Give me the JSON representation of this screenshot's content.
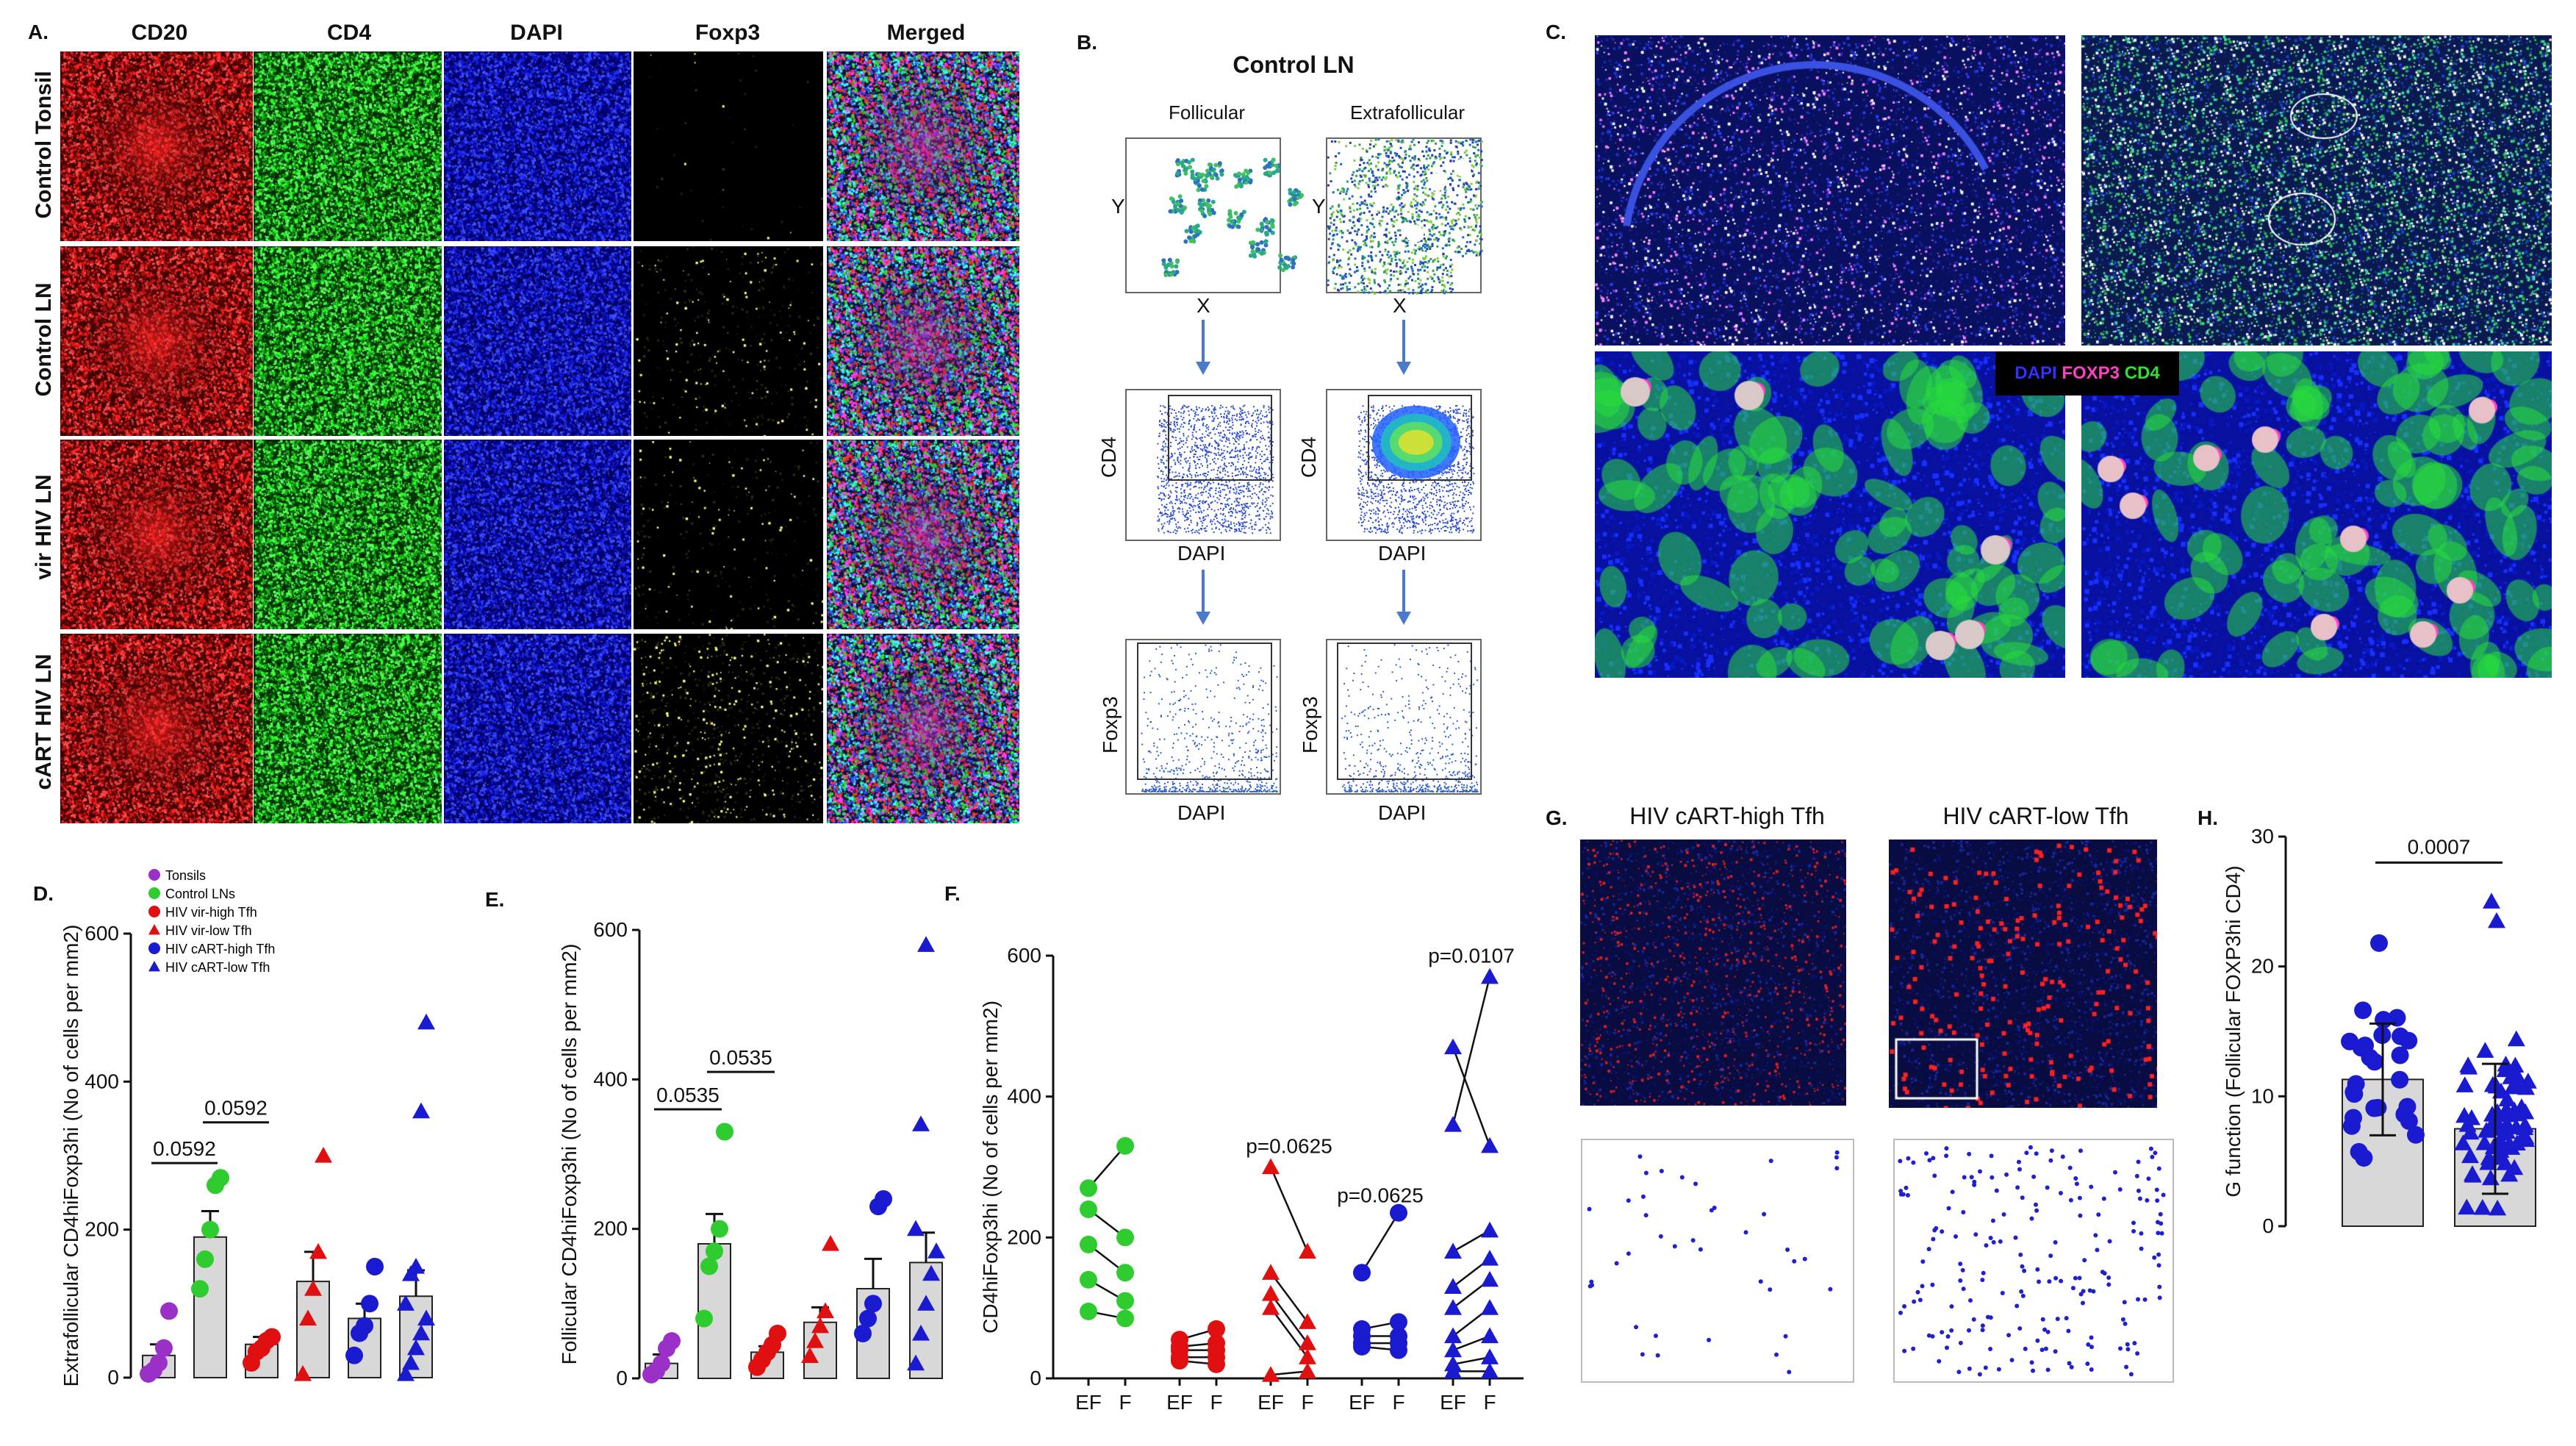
{
  "panel_labels": {
    "a": "A.",
    "b": "B.",
    "c": "C.",
    "d": "D.",
    "e": "E.",
    "f": "F.",
    "g": "G.",
    "h": "H."
  },
  "panelA": {
    "columns": [
      "CD20",
      "CD4",
      "DAPI",
      "Foxp3",
      "Merged"
    ],
    "rows": [
      "Control Tonsil",
      "Control LN",
      "vir HIV LN",
      "cART HIV LN"
    ]
  },
  "panelB": {
    "title": "Control LN",
    "col_left": "Follicular",
    "col_right": "Extrafollicular",
    "x": "X",
    "y": "Y",
    "cd4": "CD4",
    "dapi": "DAPI",
    "foxp3": "Foxp3"
  },
  "panelC": {
    "legend_dapi": "DAPI",
    "legend_foxp3": "FOXP3",
    "legend_cd4": "CD4"
  },
  "panelG": {
    "left_title": "HIV cART-high Tfh",
    "right_title": "HIV cART-low Tfh"
  },
  "legend": [
    {
      "name": "Tonsils",
      "color": "#9b30c8",
      "marker": "circle"
    },
    {
      "name": "Control LNs",
      "color": "#2ecc2e",
      "marker": "circle"
    },
    {
      "name": "HIV vir-high Tfh",
      "color": "#e01010",
      "marker": "circle"
    },
    {
      "name": "HIV vir-low Tfh",
      "color": "#e01010",
      "marker": "triangle"
    },
    {
      "name": "HIV cART-high Tfh",
      "color": "#1a1ad0",
      "marker": "circle"
    },
    {
      "name": "HIV cART-low Tfh",
      "color": "#1a1ad0",
      "marker": "triangle"
    }
  ],
  "chart_data": [
    {
      "id": "D",
      "type": "scatter",
      "ylabel": "Extrafollicular CD4hiFoxp3hi (No of cells per mm2)",
      "ylim": [
        0,
        600
      ],
      "yticks": [
        0,
        200,
        400,
        600
      ],
      "means": [
        30,
        190,
        45,
        130,
        80,
        110
      ],
      "sems": [
        15,
        35,
        10,
        40,
        20,
        35
      ],
      "groups": [
        [
          5,
          10,
          20,
          40,
          90
        ],
        [
          120,
          160,
          200,
          260,
          270
        ],
        [
          20,
          35,
          40,
          50,
          55
        ],
        [
          5,
          80,
          120,
          170,
          300
        ],
        [
          30,
          60,
          70,
          100,
          150
        ],
        [
          5,
          20,
          40,
          60,
          80,
          100,
          140,
          150,
          360,
          480
        ]
      ],
      "brackets": [
        {
          "from": 0,
          "to": 1,
          "y": 290,
          "label": "0.0592"
        },
        {
          "from": 1,
          "to": 2,
          "y": 345,
          "label": "0.0592"
        }
      ]
    },
    {
      "id": "E",
      "type": "scatter",
      "ylabel": "Follicular CD4hiFoxp3hi (No of cells per mm2)",
      "ylim": [
        0,
        600
      ],
      "yticks": [
        0,
        200,
        400,
        600
      ],
      "means": [
        20,
        180,
        35,
        75,
        120,
        155
      ],
      "sems": [
        12,
        40,
        8,
        20,
        40,
        40
      ],
      "groups": [
        [
          5,
          10,
          20,
          40,
          50
        ],
        [
          80,
          150,
          170,
          200,
          330
        ],
        [
          15,
          25,
          35,
          45,
          60
        ],
        [
          30,
          50,
          70,
          90,
          180
        ],
        [
          60,
          80,
          100,
          230,
          240
        ],
        [
          20,
          60,
          100,
          140,
          170,
          200,
          340,
          580
        ]
      ],
      "brackets": [
        {
          "from": 0,
          "to": 1,
          "y": 360,
          "label": "0.0535"
        },
        {
          "from": 1,
          "to": 2,
          "y": 410,
          "label": "0.0535"
        }
      ]
    },
    {
      "id": "F",
      "type": "paired",
      "ylabel": "CD4hiFoxp3hi (No of cells per mm2)",
      "ylim": [
        0,
        600
      ],
      "yticks": [
        0,
        200,
        400,
        600
      ],
      "xticks": [
        "EF",
        "F",
        "EF",
        "F",
        "EF",
        "F",
        "EF",
        "F",
        "EF",
        "F"
      ],
      "pairs": [
        {
          "marker": "circle",
          "color": "#2ecc2e",
          "ef": [
            270,
            240,
            190,
            140,
            95
          ],
          "f": [
            330,
            200,
            150,
            110,
            85
          ]
        },
        {
          "marker": "circle",
          "color": "#e01010",
          "ef": [
            55,
            45,
            40,
            30,
            25
          ],
          "f": [
            70,
            50,
            40,
            30,
            20
          ]
        },
        {
          "marker": "triangle",
          "color": "#e01010",
          "ef": [
            300,
            150,
            120,
            100,
            5
          ],
          "f": [
            180,
            80,
            50,
            30,
            10
          ]
        },
        {
          "marker": "circle",
          "color": "#1a1ad0",
          "ef": [
            150,
            70,
            60,
            50,
            45
          ],
          "f": [
            235,
            80,
            60,
            50,
            40
          ]
        },
        {
          "marker": "triangle",
          "color": "#1a1ad0",
          "ef": [
            470,
            360,
            180,
            130,
            100,
            60,
            40,
            20,
            10
          ],
          "f": [
            330,
            570,
            210,
            170,
            140,
            100,
            60,
            30,
            10
          ]
        }
      ],
      "annotations": [
        {
          "pair": 2,
          "label": "p=0.0625",
          "y": 320
        },
        {
          "pair": 3,
          "label": "p=0.0625",
          "y": 250
        },
        {
          "pair": 4,
          "label": "p=0.0107",
          "y": 590
        }
      ]
    },
    {
      "id": "H",
      "type": "scatter",
      "ylabel": "G function (Follicular FOXP3hi CD4)",
      "ylim": [
        0,
        30
      ],
      "yticks": [
        0,
        10,
        20,
        30
      ],
      "means": [
        11.3,
        7.5
      ],
      "sds": [
        4.3,
        5.0
      ],
      "bracket": {
        "label": "0.0007",
        "y": 28
      }
    }
  ]
}
